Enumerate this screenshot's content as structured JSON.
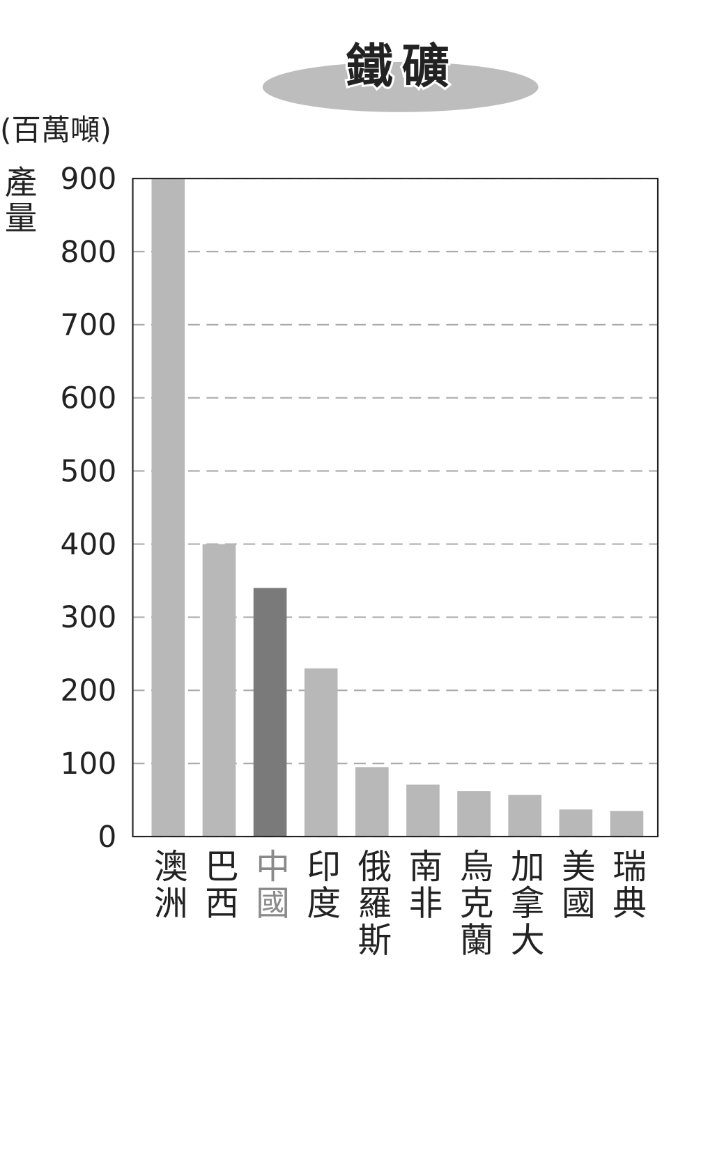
{
  "chart_data": {
    "type": "bar",
    "title": "鐵礦",
    "y_unit": "(百萬噸)",
    "y_label": "產量",
    "categories": [
      "澳洲",
      "巴西",
      "中國",
      "印度",
      "俄羅斯",
      "南非",
      "烏克蘭",
      "加拿大",
      "美國",
      "瑞典"
    ],
    "values": [
      900,
      400,
      340,
      230,
      95,
      71,
      62,
      57,
      37,
      35
    ],
    "colors": [
      "#b8b8b8",
      "#b8b8b8",
      "#7a7a7a",
      "#b8b8b8",
      "#b8b8b8",
      "#b8b8b8",
      "#b8b8b8",
      "#b8b8b8",
      "#b8b8b8",
      "#b8b8b8"
    ],
    "label_colors": [
      "#222222",
      "#222222",
      "#8a8a8a",
      "#222222",
      "#222222",
      "#222222",
      "#222222",
      "#222222",
      "#222222",
      "#222222"
    ],
    "ylim": [
      0,
      900
    ],
    "yticks": [
      0,
      100,
      200,
      300,
      400,
      500,
      600,
      700,
      800,
      900
    ],
    "grid": true
  }
}
